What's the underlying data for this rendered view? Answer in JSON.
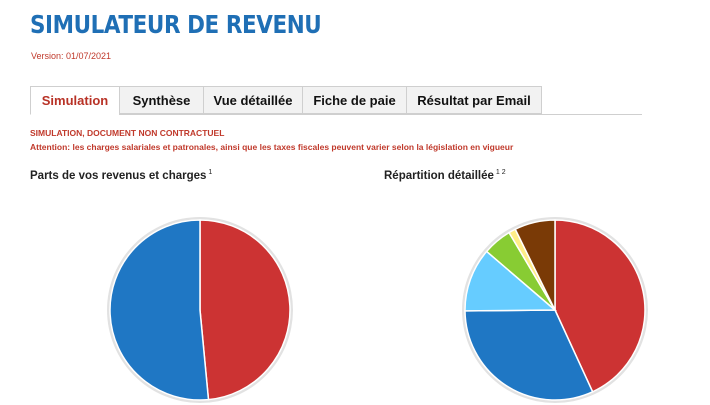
{
  "header": {
    "title": "SIMULATEUR DE REVENU",
    "version": "Version: 01/07/2021"
  },
  "tabs": [
    {
      "label": "Simulation",
      "active": true
    },
    {
      "label": "Synthèse",
      "active": false
    },
    {
      "label": "Vue détaillée",
      "active": false
    },
    {
      "label": "Fiche de paie",
      "active": false
    },
    {
      "label": "Résultat par Email",
      "active": false
    }
  ],
  "notice": {
    "line1": "SIMULATION, DOCUMENT NON CONTRACTUEL",
    "line2": "Attention: les charges salariales et patronales, ainsi que les taxes fiscales peuvent varier selon la législation en vigueur"
  },
  "colors": {
    "accent_blue": "#1f6fb5",
    "accent_red": "#c0392b"
  },
  "chart_data": [
    {
      "type": "pie",
      "title": "Parts de vos revenus et charges",
      "footnote": "1",
      "values": [
        48.5,
        51.5
      ],
      "colors": [
        "#cc3333",
        "#1f77c4"
      ]
    },
    {
      "type": "pie",
      "title": "Répartition détaillée",
      "footnote": "1 2",
      "values": [
        41.5,
        30.5,
        11,
        5,
        1.2,
        7
      ],
      "colors": [
        "#cc3333",
        "#1f77c4",
        "#66ccff",
        "#88cc33",
        "#ffee88",
        "#7a3a06"
      ]
    }
  ]
}
